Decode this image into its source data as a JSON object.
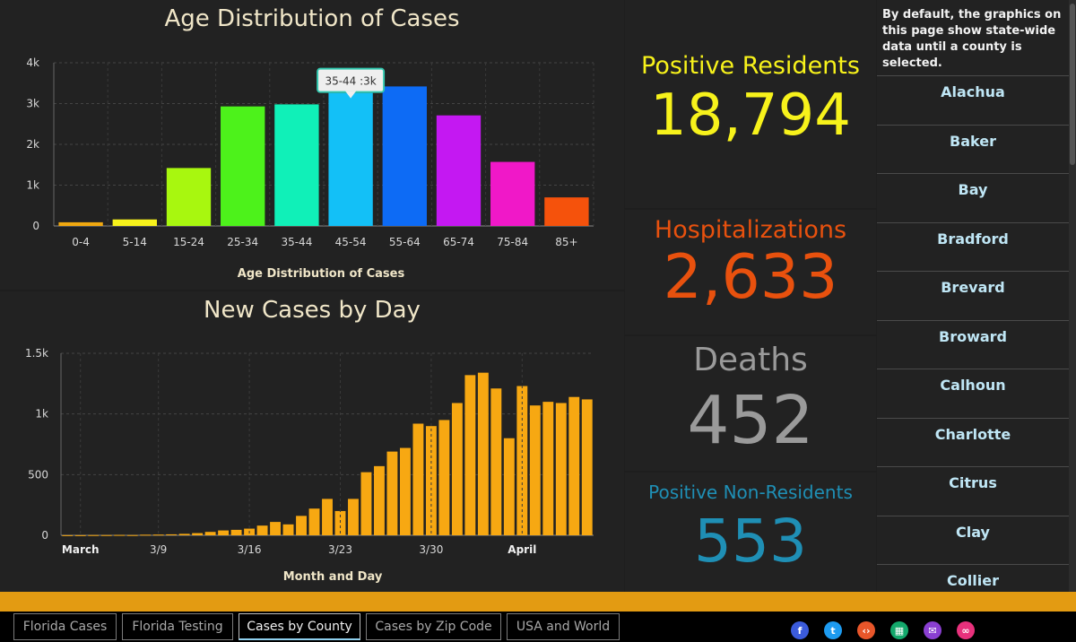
{
  "age_chart": {
    "title": "Age Distribution of Cases",
    "tooltip": "35-44 :3k"
  },
  "daily_chart": {
    "title": "New Cases by Day"
  },
  "stats": {
    "positive_residents": {
      "label": "Positive Residents",
      "value": "18,794",
      "color": "#f7f21b"
    },
    "hospitalizations": {
      "label": "Hospitalizations",
      "value": "2,633",
      "color": "#e8510e"
    },
    "deaths": {
      "label": "Deaths",
      "value": "452",
      "color": "#9a9a9a"
    },
    "non_residents": {
      "label": "Positive Non-Residents",
      "value": "553",
      "color": "#1f8fb5"
    }
  },
  "county_list": {
    "note": "By default, the graphics on this page show state-wide data until a county is selected.",
    "items": [
      "Alachua",
      "Baker",
      "Bay",
      "Bradford",
      "Brevard",
      "Broward",
      "Calhoun",
      "Charlotte",
      "Citrus",
      "Clay",
      "Collier"
    ]
  },
  "tabs": [
    {
      "label": "Florida Cases",
      "active": false
    },
    {
      "label": "Florida Testing",
      "active": false
    },
    {
      "label": "Cases by County",
      "active": true
    },
    {
      "label": "Cases by Zip Code",
      "active": false
    },
    {
      "label": "USA and World",
      "active": false
    }
  ],
  "social_icons": [
    {
      "name": "facebook-icon",
      "color": "#3b5bdb",
      "glyph": "f"
    },
    {
      "name": "twitter-icon",
      "color": "#1d9bf0",
      "glyph": "t"
    },
    {
      "name": "embed-icon",
      "color": "#e8562a",
      "glyph": "‹›"
    },
    {
      "name": "qr-code-icon",
      "color": "#13a86b",
      "glyph": "▦"
    },
    {
      "name": "email-icon",
      "color": "#8a3fd1",
      "glyph": "✉"
    },
    {
      "name": "link-icon",
      "color": "#e8317c",
      "glyph": "∞"
    }
  ],
  "chart_data": [
    {
      "type": "bar",
      "title": "Age Distribution of Cases",
      "xlabel": "Age Distribution of Cases",
      "ylabel": "",
      "categories": [
        "0-4",
        "5-14",
        "15-24",
        "25-34",
        "35-44",
        "45-54",
        "55-64",
        "65-74",
        "75-84",
        "85+"
      ],
      "values": [
        90,
        160,
        1420,
        2930,
        2980,
        3260,
        3420,
        2710,
        1570,
        700
      ],
      "colors": [
        "#f0a810",
        "#f7f21b",
        "#a8f70f",
        "#4df21b",
        "#10f0b8",
        "#13c0f7",
        "#0d6bf5",
        "#c418f2",
        "#f018c8",
        "#f5520c"
      ],
      "ylim": [
        0,
        4000
      ],
      "yticks": [
        0,
        1000,
        2000,
        3000,
        4000
      ],
      "ytick_labels": [
        "0",
        "1k",
        "2k",
        "3k",
        "4k"
      ],
      "grid": true
    },
    {
      "type": "bar",
      "title": "New Cases by Day",
      "xlabel": "Month and Day",
      "ylabel": "",
      "series": [
        {
          "values": [
            1,
            1,
            2,
            2,
            3,
            2,
            5,
            6,
            8,
            12,
            18,
            28,
            40,
            45,
            55,
            80,
            110,
            90,
            160,
            220,
            300,
            200,
            300,
            520,
            570,
            690,
            720,
            920,
            900,
            950,
            1090,
            1320,
            1340,
            1210,
            800,
            1230,
            1070,
            1100,
            1090,
            1140,
            1120
          ]
        }
      ],
      "xtick_labels": [
        "March",
        "3/9",
        "3/16",
        "3/23",
        "3/30",
        "April"
      ],
      "ylim": [
        0,
        1500
      ],
      "yticks": [
        0,
        500,
        1000,
        1500
      ],
      "ytick_labels": [
        "0",
        "500",
        "1k",
        "1.5k"
      ],
      "color": "#f7a812",
      "grid": true
    }
  ]
}
